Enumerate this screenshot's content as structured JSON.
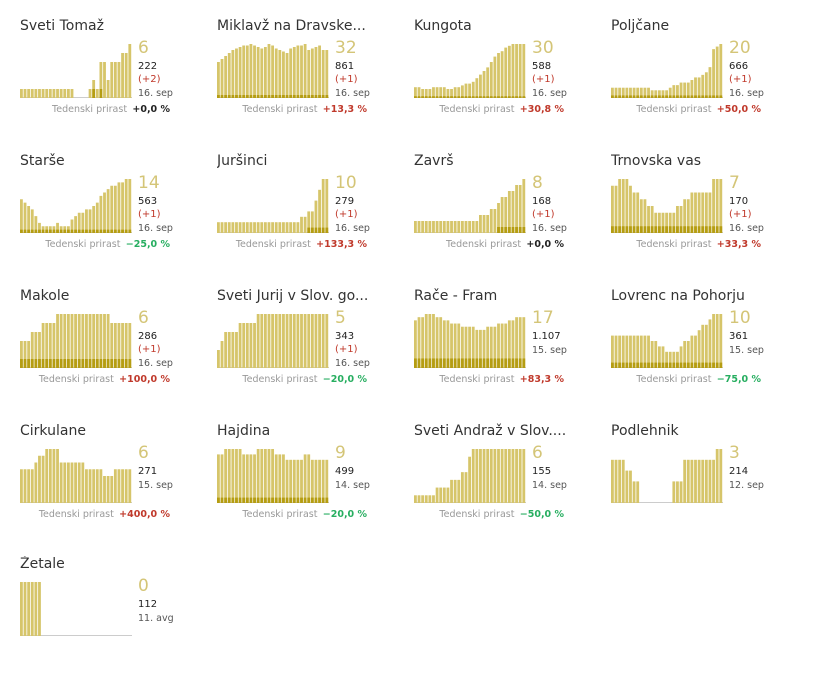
{
  "labels": {
    "weekly": "Tedenski prirast"
  },
  "colors": {
    "bar": "#d6c56a",
    "bar_dark": "#b59d12",
    "baseline": "#cccccc",
    "up": "#c0392b",
    "down": "#27ae60",
    "zero": "#222222",
    "big": "#d4c577"
  },
  "chart_data": [
    {
      "type": "bar",
      "title": "Sveti Tomaž",
      "active": "6",
      "total": "222",
      "delta": "(+2)",
      "date": "16. sep",
      "weekly_change": "+0,0 %",
      "trend": "zero",
      "values": [
        1,
        1,
        1,
        1,
        1,
        1,
        1,
        1,
        1,
        1,
        1,
        1,
        1,
        1,
        1,
        0,
        0,
        0,
        0,
        1,
        2,
        1,
        4,
        4,
        2,
        4,
        4,
        4,
        5,
        5,
        6
      ],
      "recent": [
        0,
        0,
        0,
        0,
        0,
        0,
        0,
        0,
        0,
        0,
        0,
        0,
        0,
        0,
        0,
        0,
        0,
        0,
        0,
        0,
        1,
        0,
        1,
        0,
        0,
        0,
        0,
        0,
        0,
        0,
        0
      ]
    },
    {
      "type": "bar",
      "title": "Miklavž na Dravske...",
      "active": "32",
      "total": "861",
      "delta": "(+1)",
      "date": "16. sep",
      "weekly_change": "+13,3 %",
      "trend": "up",
      "values": [
        24,
        26,
        28,
        30,
        32,
        33,
        34,
        35,
        35,
        36,
        35,
        34,
        33,
        34,
        36,
        35,
        33,
        32,
        31,
        30,
        33,
        34,
        35,
        35,
        36,
        32,
        33,
        34,
        35,
        32,
        32
      ],
      "recent": [
        2,
        2,
        2,
        2,
        2,
        2,
        2,
        2,
        2,
        2,
        2,
        2,
        2,
        2,
        2,
        2,
        2,
        2,
        2,
        2,
        2,
        2,
        2,
        2,
        2,
        2,
        2,
        2,
        2,
        2,
        2
      ]
    },
    {
      "type": "bar",
      "title": "Kungota",
      "active": "30",
      "total": "588",
      "delta": "(+1)",
      "date": "16. sep",
      "weekly_change": "+30,8 %",
      "trend": "up",
      "values": [
        6,
        6,
        5,
        5,
        5,
        6,
        6,
        6,
        6,
        5,
        5,
        6,
        6,
        7,
        8,
        8,
        9,
        11,
        13,
        15,
        17,
        20,
        23,
        25,
        26,
        28,
        29,
        30,
        30,
        30,
        30
      ],
      "recent": [
        1,
        1,
        1,
        1,
        1,
        1,
        1,
        1,
        1,
        1,
        1,
        1,
        1,
        1,
        1,
        1,
        1,
        1,
        1,
        1,
        1,
        1,
        1,
        1,
        1,
        1,
        1,
        1,
        1,
        1,
        1
      ]
    },
    {
      "type": "bar",
      "title": "Poljčane",
      "active": "20",
      "total": "666",
      "delta": "(+1)",
      "date": "16. sep",
      "weekly_change": "+50,0 %",
      "trend": "up",
      "values": [
        4,
        4,
        4,
        4,
        4,
        4,
        4,
        4,
        4,
        4,
        4,
        3,
        3,
        3,
        3,
        3,
        4,
        5,
        5,
        6,
        6,
        6,
        7,
        8,
        8,
        9,
        10,
        12,
        19,
        20,
        21
      ],
      "recent": [
        1,
        1,
        1,
        1,
        1,
        1,
        1,
        1,
        1,
        1,
        1,
        1,
        1,
        1,
        1,
        1,
        1,
        1,
        1,
        1,
        1,
        1,
        1,
        1,
        1,
        1,
        1,
        1,
        1,
        1,
        1
      ]
    },
    {
      "type": "bar",
      "title": "Starše",
      "active": "14",
      "total": "563",
      "delta": "(+1)",
      "date": "16. sep",
      "weekly_change": "−25,0 %",
      "trend": "down",
      "values": [
        10,
        9,
        8,
        7,
        5,
        3,
        2,
        2,
        2,
        2,
        3,
        2,
        2,
        2,
        4,
        5,
        6,
        6,
        7,
        7,
        8,
        9,
        11,
        12,
        13,
        14,
        14,
        15,
        15,
        16,
        16
      ],
      "recent": [
        1,
        1,
        1,
        1,
        1,
        1,
        1,
        1,
        1,
        1,
        1,
        1,
        1,
        1,
        1,
        1,
        1,
        1,
        1,
        1,
        1,
        1,
        1,
        1,
        1,
        1,
        1,
        1,
        1,
        1,
        1
      ]
    },
    {
      "type": "bar",
      "title": "Juršinci",
      "active": "10",
      "total": "279",
      "delta": "(+1)",
      "date": "16. sep",
      "weekly_change": "+133,3 %",
      "trend": "up",
      "values": [
        2,
        2,
        2,
        2,
        2,
        2,
        2,
        2,
        2,
        2,
        2,
        2,
        2,
        2,
        2,
        2,
        2,
        2,
        2,
        2,
        2,
        2,
        2,
        3,
        3,
        4,
        4,
        6,
        8,
        10,
        10
      ],
      "recent": [
        0,
        0,
        0,
        0,
        0,
        0,
        0,
        0,
        0,
        0,
        0,
        0,
        0,
        0,
        0,
        0,
        0,
        0,
        0,
        0,
        0,
        0,
        0,
        0,
        0,
        1,
        1,
        1,
        1,
        1,
        1
      ]
    },
    {
      "type": "bar",
      "title": "Završ",
      "active": "8",
      "total": "168",
      "delta": "(+1)",
      "date": "16. sep",
      "weekly_change": "+0,0 %",
      "trend": "zero",
      "values": [
        2,
        2,
        2,
        2,
        2,
        2,
        2,
        2,
        2,
        2,
        2,
        2,
        2,
        2,
        2,
        2,
        2,
        2,
        3,
        3,
        3,
        4,
        4,
        5,
        6,
        6,
        7,
        7,
        8,
        8,
        9
      ],
      "recent": [
        0,
        0,
        0,
        0,
        0,
        0,
        0,
        0,
        0,
        0,
        0,
        0,
        0,
        0,
        0,
        0,
        0,
        0,
        0,
        0,
        0,
        0,
        0,
        1,
        1,
        1,
        1,
        1,
        1,
        1,
        1
      ]
    },
    {
      "type": "bar",
      "title": "Trnovska vas",
      "active": "7",
      "total": "170",
      "delta": "(+1)",
      "date": "16. sep",
      "weekly_change": "+33,3 %",
      "trend": "up",
      "values": [
        7,
        7,
        8,
        8,
        8,
        7,
        6,
        6,
        5,
        5,
        4,
        4,
        3,
        3,
        3,
        3,
        3,
        3,
        4,
        4,
        5,
        5,
        6,
        6,
        6,
        6,
        6,
        6,
        8,
        8,
        8
      ],
      "recent": [
        1,
        1,
        1,
        1,
        1,
        1,
        1,
        1,
        1,
        1,
        1,
        1,
        1,
        1,
        1,
        1,
        1,
        1,
        1,
        1,
        1,
        1,
        1,
        1,
        1,
        1,
        1,
        1,
        1,
        1,
        1
      ]
    },
    {
      "type": "bar",
      "title": "Makole",
      "active": "6",
      "total": "286",
      "delta": "(+1)",
      "date": "16. sep",
      "weekly_change": "+100,0 %",
      "trend": "up",
      "values": [
        3,
        3,
        3,
        4,
        4,
        4,
        5,
        5,
        5,
        5,
        6,
        6,
        6,
        6,
        6,
        6,
        6,
        6,
        6,
        6,
        6,
        6,
        6,
        6,
        6,
        5,
        5,
        5,
        5,
        5,
        5
      ],
      "recent": [
        1,
        1,
        1,
        1,
        1,
        1,
        1,
        1,
        1,
        1,
        1,
        1,
        1,
        1,
        1,
        1,
        1,
        1,
        1,
        1,
        1,
        1,
        1,
        1,
        1,
        1,
        1,
        1,
        1,
        1,
        1
      ]
    },
    {
      "type": "bar",
      "title": "Sveti Jurij v Slov. go...",
      "active": "5",
      "total": "343",
      "delta": "(+1)",
      "date": "16. sep",
      "weekly_change": "−20,0 %",
      "trend": "down",
      "values": [
        2,
        3,
        4,
        4,
        4,
        4,
        5,
        5,
        5,
        5,
        5,
        6,
        6,
        6,
        6,
        6,
        6,
        6,
        6,
        6,
        6,
        6,
        6,
        6,
        6,
        6,
        6,
        6,
        6,
        6,
        6
      ],
      "recent": [
        0,
        0,
        0,
        0,
        0,
        0,
        0,
        0,
        0,
        0,
        0,
        0,
        0,
        0,
        0,
        0,
        0,
        0,
        0,
        0,
        0,
        0,
        0,
        0,
        0,
        0,
        0,
        0,
        0,
        0,
        0
      ]
    },
    {
      "type": "bar",
      "title": "Rače - Fram",
      "active": "17",
      "total": "1.107",
      "delta": "",
      "date": "15. sep",
      "weekly_change": "+83,3 %",
      "trend": "up",
      "values": [
        15,
        16,
        16,
        17,
        17,
        17,
        16,
        16,
        15,
        15,
        14,
        14,
        14,
        13,
        13,
        13,
        13,
        12,
        12,
        12,
        13,
        13,
        13,
        14,
        14,
        14,
        15,
        15,
        16,
        16,
        16
      ],
      "recent": [
        3,
        3,
        3,
        3,
        3,
        3,
        3,
        3,
        3,
        3,
        3,
        3,
        3,
        3,
        3,
        3,
        3,
        3,
        3,
        3,
        3,
        3,
        3,
        3,
        3,
        3,
        3,
        3,
        3,
        3,
        3
      ]
    },
    {
      "type": "bar",
      "title": "Lovrenc na Pohorju",
      "active": "10",
      "total": "361",
      "delta": "",
      "date": "15. sep",
      "weekly_change": "−75,0 %",
      "trend": "down",
      "values": [
        6,
        6,
        6,
        6,
        6,
        6,
        6,
        6,
        6,
        6,
        6,
        5,
        5,
        4,
        4,
        3,
        3,
        3,
        3,
        4,
        5,
        5,
        6,
        6,
        7,
        8,
        8,
        9,
        10,
        10,
        10
      ],
      "recent": [
        1,
        1,
        1,
        1,
        1,
        1,
        1,
        1,
        1,
        1,
        1,
        1,
        1,
        1,
        1,
        1,
        1,
        1,
        1,
        1,
        1,
        1,
        1,
        1,
        1,
        1,
        1,
        1,
        1,
        1,
        1
      ]
    },
    {
      "type": "bar",
      "title": "Cirkulane",
      "active": "6",
      "total": "271",
      "delta": "",
      "date": "15. sep",
      "weekly_change": "+400,0 %",
      "trend": "up",
      "values": [
        5,
        5,
        5,
        5,
        6,
        7,
        7,
        8,
        8,
        8,
        8,
        6,
        6,
        6,
        6,
        6,
        6,
        6,
        5,
        5,
        5,
        5,
        5,
        4,
        4,
        4,
        5,
        5,
        5,
        5,
        5
      ],
      "recent": [
        0,
        0,
        0,
        0,
        0,
        0,
        0,
        0,
        0,
        0,
        0,
        0,
        0,
        0,
        0,
        0,
        0,
        0,
        0,
        0,
        0,
        0,
        0,
        0,
        0,
        0,
        0,
        0,
        0,
        0,
        0
      ]
    },
    {
      "type": "bar",
      "title": "Hajdina",
      "active": "9",
      "total": "499",
      "delta": "",
      "date": "14. sep",
      "weekly_change": "−20,0 %",
      "trend": "down",
      "values": [
        9,
        9,
        10,
        10,
        10,
        10,
        10,
        9,
        9,
        9,
        9,
        10,
        10,
        10,
        10,
        10,
        9,
        9,
        9,
        8,
        8,
        8,
        8,
        8,
        9,
        9,
        8,
        8,
        8,
        8,
        8
      ],
      "recent": [
        1,
        1,
        1,
        1,
        1,
        1,
        1,
        1,
        1,
        1,
        1,
        1,
        1,
        1,
        1,
        1,
        1,
        1,
        1,
        1,
        1,
        1,
        1,
        1,
        1,
        1,
        1,
        1,
        1,
        1,
        1
      ]
    },
    {
      "type": "bar",
      "title": "Sveti Andraž v Slov....",
      "active": "6",
      "total": "155",
      "delta": "",
      "date": "14. sep",
      "weekly_change": "−50,0 %",
      "trend": "down",
      "values": [
        1,
        1,
        1,
        1,
        1,
        1,
        2,
        2,
        2,
        2,
        3,
        3,
        3,
        4,
        4,
        6,
        7,
        7,
        7,
        7,
        7,
        7,
        7,
        7,
        7,
        7,
        7,
        7,
        7,
        7,
        7
      ],
      "recent": [
        0,
        0,
        0,
        0,
        0,
        0,
        0,
        0,
        0,
        0,
        0,
        0,
        0,
        0,
        0,
        0,
        0,
        0,
        0,
        0,
        0,
        0,
        0,
        0,
        0,
        0,
        0,
        0,
        0,
        0,
        0
      ]
    },
    {
      "type": "bar",
      "title": "Podlehnik",
      "active": "3",
      "total": "214",
      "delta": "",
      "date": "12. sep",
      "weekly_change": "",
      "trend": "none",
      "values": [
        4,
        4,
        4,
        4,
        3,
        3,
        2,
        2,
        0,
        0,
        0,
        0,
        0,
        0,
        0,
        0,
        0,
        2,
        2,
        2,
        4,
        4,
        4,
        4,
        4,
        4,
        4,
        4,
        4,
        5,
        5
      ],
      "recent": [
        0,
        0,
        0,
        0,
        0,
        0,
        0,
        0,
        0,
        0,
        0,
        0,
        0,
        0,
        0,
        0,
        0,
        0,
        0,
        0,
        0,
        0,
        0,
        0,
        0,
        0,
        0,
        0,
        0,
        0,
        0
      ]
    },
    {
      "type": "bar",
      "title": "Žetale",
      "active": "0",
      "total": "112",
      "delta": "",
      "date": "11. avg",
      "weekly_change": "",
      "trend": "none",
      "values": [
        2,
        2,
        2,
        2,
        2,
        2,
        0,
        0,
        0,
        0,
        0,
        0,
        0,
        0,
        0,
        0,
        0,
        0,
        0,
        0,
        0,
        0,
        0,
        0,
        0,
        0,
        0,
        0,
        0,
        0,
        0
      ],
      "recent": [
        0,
        0,
        0,
        0,
        0,
        0,
        0,
        0,
        0,
        0,
        0,
        0,
        0,
        0,
        0,
        0,
        0,
        0,
        0,
        0,
        0,
        0,
        0,
        0,
        0,
        0,
        0,
        0,
        0,
        0,
        0
      ]
    }
  ]
}
